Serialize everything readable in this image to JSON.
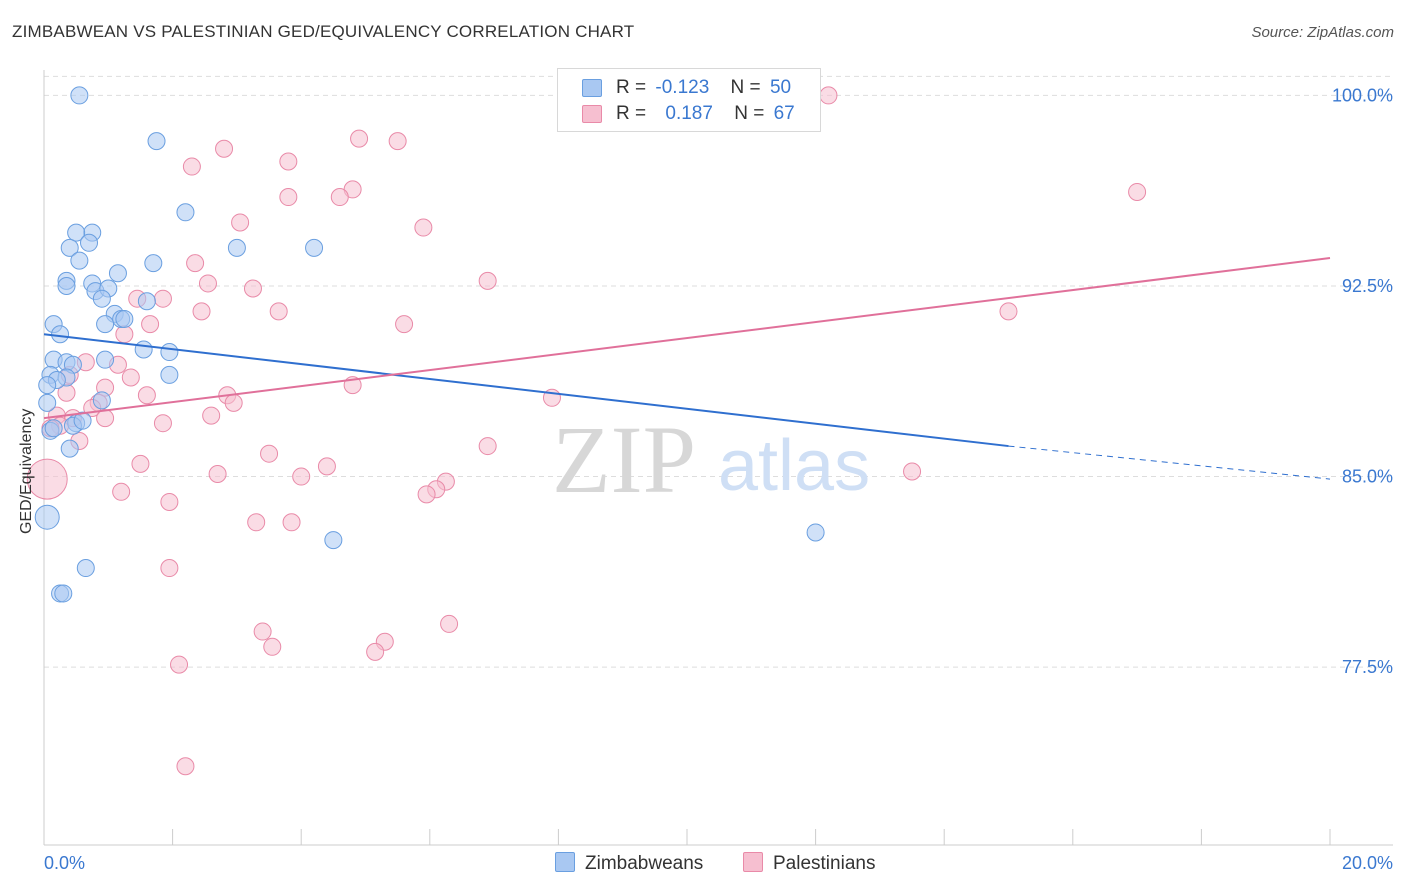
{
  "header": {
    "title": "ZIMBABWEAN VS PALESTINIAN GED/EQUIVALENCY CORRELATION CHART",
    "source": "Source: ZipAtlas.com"
  },
  "watermark": {
    "zip": "ZIP",
    "atlas": "atlas"
  },
  "legend": {
    "rows": [
      {
        "r_label": "R =",
        "r_value": "-0.123",
        "n_label": "N =",
        "n_value": "50"
      },
      {
        "r_label": "R =",
        "r_value": "0.187",
        "n_label": "N =",
        "n_value": "67"
      }
    ]
  },
  "bottom_legend": {
    "series1": "Zimbabweans",
    "series2": "Palestinians"
  },
  "colors": {
    "blue_fill": "#a9c8f2",
    "blue_stroke": "#6a9fe0",
    "blue_line": "#2f6fcf",
    "pink_fill": "#f6bfd0",
    "pink_stroke": "#e98aa8",
    "pink_line": "#e0709a",
    "tick_text": "#3a78d0",
    "grid": "#dddddd"
  },
  "chart_data": {
    "type": "scatter",
    "title": "ZIMBABWEAN VS PALESTINIAN GED/EQUIVALENCY CORRELATION CHART",
    "xlabel": "",
    "ylabel": "GED/Equivalency",
    "xlim": [
      0,
      20
    ],
    "ylim": [
      70.5,
      101
    ],
    "x_tick_labels": [
      "0.0%",
      "20.0%"
    ],
    "y_ticks": [
      77.5,
      85.0,
      92.5,
      100.0
    ],
    "y_tick_labels": [
      "77.5%",
      "85.0%",
      "92.5%",
      "100.0%"
    ],
    "series": [
      {
        "name": "Zimbabweans",
        "r": -0.123,
        "n": 50,
        "trend": {
          "x0": 0,
          "y0": 90.6,
          "x1": 15.0,
          "y1": 86.2,
          "dash_to_x": 20,
          "dash_to_y": 84.9
        },
        "points": [
          {
            "x": 0.55,
            "y": 100.0
          },
          {
            "x": 1.75,
            "y": 98.2
          },
          {
            "x": 2.2,
            "y": 95.4
          },
          {
            "x": 0.75,
            "y": 94.6
          },
          {
            "x": 0.5,
            "y": 94.6
          },
          {
            "x": 0.4,
            "y": 94.0
          },
          {
            "x": 0.7,
            "y": 94.2
          },
          {
            "x": 3.0,
            "y": 94.0
          },
          {
            "x": 4.2,
            "y": 94.0
          },
          {
            "x": 1.7,
            "y": 93.4
          },
          {
            "x": 0.55,
            "y": 93.5
          },
          {
            "x": 1.15,
            "y": 93.0
          },
          {
            "x": 0.35,
            "y": 92.7
          },
          {
            "x": 0.75,
            "y": 92.6
          },
          {
            "x": 0.35,
            "y": 92.5
          },
          {
            "x": 0.8,
            "y": 92.3
          },
          {
            "x": 1.0,
            "y": 92.4
          },
          {
            "x": 0.9,
            "y": 92.0
          },
          {
            "x": 1.6,
            "y": 91.9
          },
          {
            "x": 1.1,
            "y": 91.4
          },
          {
            "x": 1.2,
            "y": 91.2
          },
          {
            "x": 0.95,
            "y": 91.0
          },
          {
            "x": 0.15,
            "y": 91.0
          },
          {
            "x": 0.25,
            "y": 90.6
          },
          {
            "x": 1.55,
            "y": 90.0
          },
          {
            "x": 1.95,
            "y": 89.9
          },
          {
            "x": 0.15,
            "y": 89.6
          },
          {
            "x": 0.35,
            "y": 89.5
          },
          {
            "x": 0.45,
            "y": 89.4
          },
          {
            "x": 0.95,
            "y": 89.6
          },
          {
            "x": 0.1,
            "y": 89.0
          },
          {
            "x": 0.35,
            "y": 88.9
          },
          {
            "x": 0.2,
            "y": 88.8
          },
          {
            "x": 1.95,
            "y": 89.0
          },
          {
            "x": 0.05,
            "y": 88.6
          },
          {
            "x": 0.9,
            "y": 88.0
          },
          {
            "x": 0.05,
            "y": 87.9
          },
          {
            "x": 0.5,
            "y": 87.1
          },
          {
            "x": 0.45,
            "y": 87.0
          },
          {
            "x": 0.1,
            "y": 86.8
          },
          {
            "x": 0.4,
            "y": 86.1
          },
          {
            "x": 0.05,
            "y": 83.4
          },
          {
            "x": 4.5,
            "y": 82.5
          },
          {
            "x": 12.0,
            "y": 82.8
          },
          {
            "x": 0.65,
            "y": 81.4
          },
          {
            "x": 0.25,
            "y": 80.4
          },
          {
            "x": 0.3,
            "y": 80.4
          },
          {
            "x": 0.15,
            "y": 86.9
          },
          {
            "x": 0.6,
            "y": 87.2
          },
          {
            "x": 1.25,
            "y": 91.2
          }
        ]
      },
      {
        "name": "Palestinians",
        "r": 0.187,
        "n": 67,
        "trend": {
          "x0": 0,
          "y0": 87.3,
          "x1": 20,
          "y1": 93.6
        },
        "points": [
          {
            "x": 12.2,
            "y": 100.0
          },
          {
            "x": 4.9,
            "y": 98.3
          },
          {
            "x": 5.5,
            "y": 98.2
          },
          {
            "x": 2.8,
            "y": 97.9
          },
          {
            "x": 3.8,
            "y": 97.4
          },
          {
            "x": 2.3,
            "y": 97.2
          },
          {
            "x": 4.8,
            "y": 96.3
          },
          {
            "x": 17.0,
            "y": 96.2
          },
          {
            "x": 3.8,
            "y": 96.0
          },
          {
            "x": 4.6,
            "y": 96.0
          },
          {
            "x": 3.05,
            "y": 95.0
          },
          {
            "x": 5.9,
            "y": 94.8
          },
          {
            "x": 2.35,
            "y": 93.4
          },
          {
            "x": 2.55,
            "y": 92.6
          },
          {
            "x": 6.9,
            "y": 92.7
          },
          {
            "x": 3.25,
            "y": 92.4
          },
          {
            "x": 1.85,
            "y": 92.0
          },
          {
            "x": 1.45,
            "y": 92.0
          },
          {
            "x": 2.45,
            "y": 91.5
          },
          {
            "x": 3.65,
            "y": 91.5
          },
          {
            "x": 15.0,
            "y": 91.5
          },
          {
            "x": 1.65,
            "y": 91.0
          },
          {
            "x": 5.6,
            "y": 91.0
          },
          {
            "x": 1.25,
            "y": 90.6
          },
          {
            "x": 0.65,
            "y": 89.5
          },
          {
            "x": 1.15,
            "y": 89.4
          },
          {
            "x": 0.4,
            "y": 89.0
          },
          {
            "x": 1.35,
            "y": 88.9
          },
          {
            "x": 0.95,
            "y": 88.5
          },
          {
            "x": 4.8,
            "y": 88.6
          },
          {
            "x": 0.35,
            "y": 88.3
          },
          {
            "x": 1.6,
            "y": 88.2
          },
          {
            "x": 2.85,
            "y": 88.2
          },
          {
            "x": 2.95,
            "y": 87.9
          },
          {
            "x": 7.9,
            "y": 88.1
          },
          {
            "x": 0.85,
            "y": 87.9
          },
          {
            "x": 0.75,
            "y": 87.7
          },
          {
            "x": 0.2,
            "y": 87.4
          },
          {
            "x": 2.6,
            "y": 87.4
          },
          {
            "x": 0.95,
            "y": 87.3
          },
          {
            "x": 0.45,
            "y": 87.3
          },
          {
            "x": 1.85,
            "y": 87.1
          },
          {
            "x": 0.25,
            "y": 87.0
          },
          {
            "x": 0.1,
            "y": 86.9
          },
          {
            "x": 0.55,
            "y": 86.4
          },
          {
            "x": 6.9,
            "y": 86.2
          },
          {
            "x": 3.5,
            "y": 85.9
          },
          {
            "x": 1.5,
            "y": 85.5
          },
          {
            "x": 4.4,
            "y": 85.4
          },
          {
            "x": 0.05,
            "y": 84.9
          },
          {
            "x": 2.7,
            "y": 85.1
          },
          {
            "x": 4.0,
            "y": 85.0
          },
          {
            "x": 13.5,
            "y": 85.2
          },
          {
            "x": 6.25,
            "y": 84.8
          },
          {
            "x": 6.1,
            "y": 84.5
          },
          {
            "x": 1.2,
            "y": 84.4
          },
          {
            "x": 5.95,
            "y": 84.3
          },
          {
            "x": 1.95,
            "y": 84.0
          },
          {
            "x": 3.3,
            "y": 83.2
          },
          {
            "x": 3.85,
            "y": 83.2
          },
          {
            "x": 1.95,
            "y": 81.4
          },
          {
            "x": 6.3,
            "y": 79.2
          },
          {
            "x": 3.4,
            "y": 78.9
          },
          {
            "x": 3.55,
            "y": 78.3
          },
          {
            "x": 5.3,
            "y": 78.5
          },
          {
            "x": 5.15,
            "y": 78.1
          },
          {
            "x": 2.1,
            "y": 77.6
          },
          {
            "x": 2.2,
            "y": 73.6
          }
        ]
      }
    ]
  }
}
